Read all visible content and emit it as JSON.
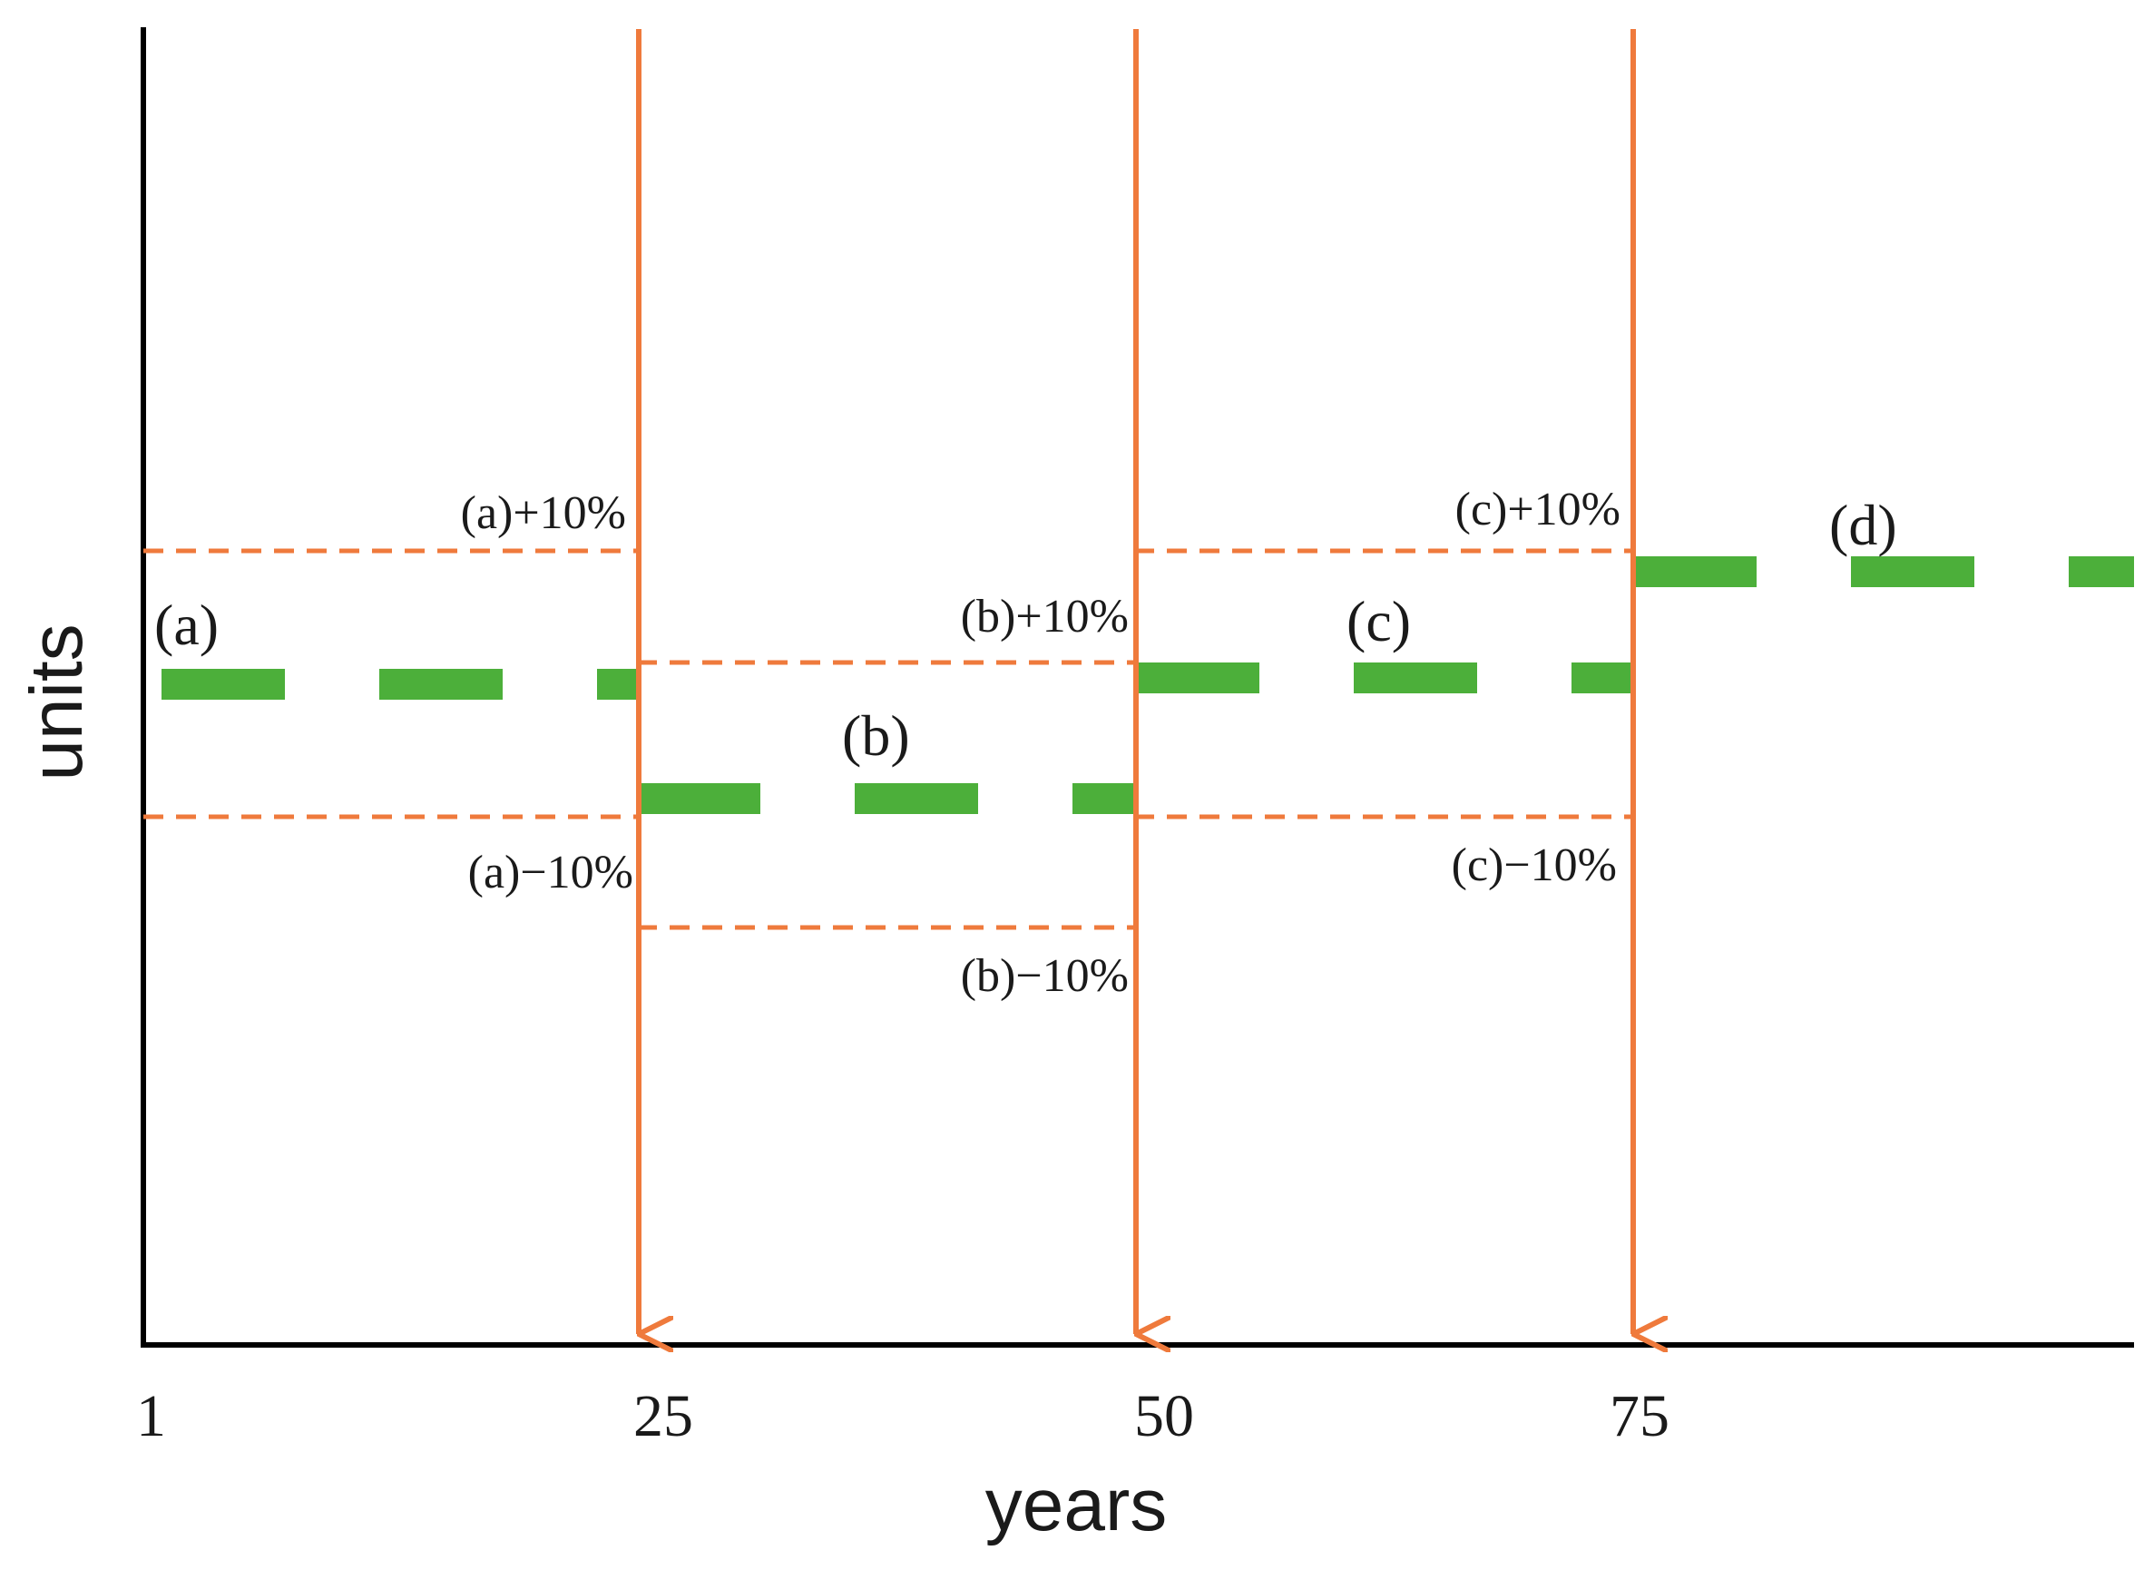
{
  "colors": {
    "axis": "#000000",
    "boundary": "#ef7a3c",
    "segment": "#4caf3a",
    "text": "#1a1a1a"
  },
  "axes": {
    "xlabel": "years",
    "ylabel": "units"
  },
  "x_ticks": [
    "1",
    "25",
    "50",
    "75"
  ],
  "segments": [
    {
      "id": "a",
      "label": "(a)",
      "x_start": 1,
      "x_end": 25,
      "level": 100,
      "upper": "(a)+10%",
      "lower": "(a)−10%"
    },
    {
      "id": "b",
      "label": "(b)",
      "x_start": 25,
      "x_end": 50,
      "level": 91,
      "upper": "(b)+10%",
      "lower": "(b)−10%"
    },
    {
      "id": "c",
      "label": "(c)",
      "x_start": 50,
      "x_end": 75,
      "level": 100.5,
      "upper": "(c)+10%",
      "lower": "(c)−10%"
    },
    {
      "id": "d",
      "label": "(d)",
      "x_start": 75,
      "x_end": 100,
      "level": 108.5
    }
  ],
  "boundaries": [
    25,
    50,
    75
  ]
}
